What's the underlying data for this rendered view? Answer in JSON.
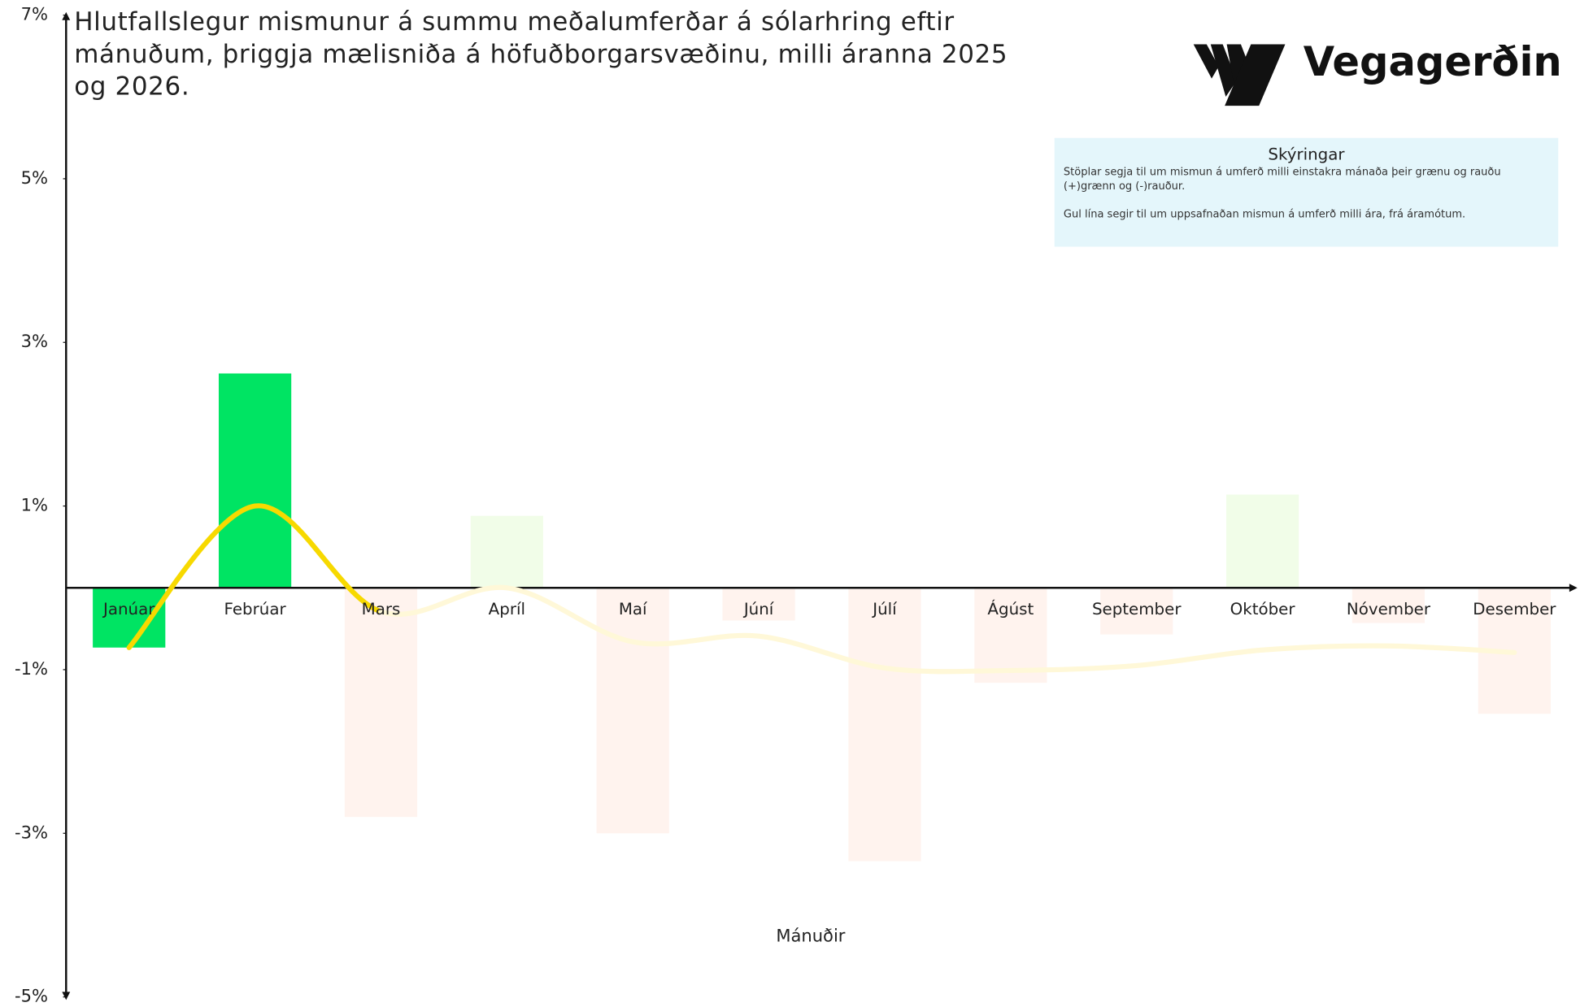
{
  "chart_data": {
    "type": "bar",
    "title": "Hlutfallslegur mismunur á summu meðalumferðar á sólarhring eftir mánuðum, þriggja mælisniða á höfuðborgarsvæðinu, milli áranna 2025 og 2026.",
    "x_label": "Mánuðir",
    "brand": "Vegagerðin",
    "legend_title": "Skýringar",
    "legend_texts": [
      "Stöplar segja til um mismun á umferð milli einstakra mánaða  þeir grænu og rauðu (+)grænn og (-)rauður.",
      "Gul lína segir til um uppsafnaðan mismun á umferð milli ára, frá áramótum."
    ],
    "categories": [
      "Janúar",
      "Febrúar",
      "Mars",
      "Apríl",
      "Maí",
      "Júní",
      "Júlí",
      "Ágúst",
      "September",
      "Október",
      "Nóvember",
      "Desember"
    ],
    "values": [
      -0.73,
      2.62,
      -2.8,
      0.88,
      -3.0,
      -0.4,
      -3.34,
      -1.16,
      -0.57,
      1.14,
      -0.43,
      -1.54
    ],
    "colors": [
      "#00e463",
      "#00e463",
      "#fff3ee",
      "#f1fde8",
      "#fff3ee",
      "#fff3ee",
      "#fff3ee",
      "#fff3ee",
      "#fff3ee",
      "#f1fde8",
      "#fff3ee",
      "#fff3ee"
    ],
    "line": {
      "values": [
        -0.73,
        1.0,
        -0.29,
        0.0,
        -0.66,
        -0.59,
        -0.98,
        -1.01,
        -0.95,
        -0.76,
        -0.71,
        -0.79
      ],
      "colors": [
        "#f7d900",
        "#f7d900",
        "#f7d900",
        "#fff8d8",
        "#fff8d8",
        "#fff8d8",
        "#fff8d8",
        "#fff8d8",
        "#fff8d8",
        "#fff8d8",
        "#fff8d8",
        "#fff8d8"
      ]
    },
    "ylim": [
      -5,
      7
    ],
    "yticks": [
      {
        "value": 7,
        "label": "7%"
      },
      {
        "value": 5,
        "label": "5%"
      },
      {
        "value": 3,
        "label": "3%"
      },
      {
        "value": 1,
        "label": "1%"
      },
      {
        "value": -1,
        "label": "-1%"
      },
      {
        "value": -3,
        "label": "-3%"
      },
      {
        "value": -5,
        "label": "-5%"
      }
    ]
  }
}
